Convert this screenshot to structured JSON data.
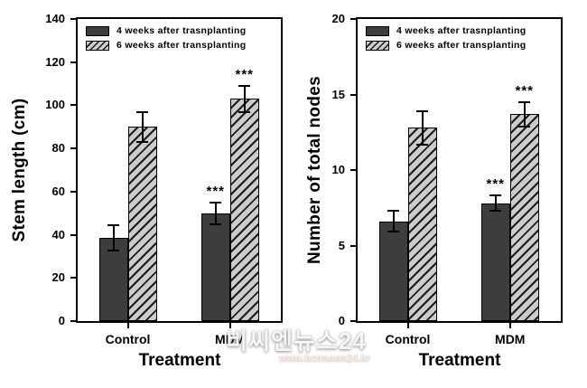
{
  "figure": {
    "background": "#ffffff"
  },
  "watermark": {
    "title": "비씨엔뉴스24",
    "url": "www.bcnnews24.kr"
  },
  "colors": {
    "bar_dark_fill": "#3d3d3d",
    "bar_hatch_bg": "#cccccc",
    "hatch_line": "#1a1a1a",
    "axis_line": "#000000",
    "text": "#000000"
  },
  "significance_symbol": "***",
  "chart_data": [
    {
      "type": "bar",
      "title": "",
      "xlabel": "Treatment",
      "ylabel": "Stem length (cm)",
      "ylim": [
        0,
        140
      ],
      "ytick_step": 20,
      "yticks": [
        0,
        20,
        40,
        60,
        80,
        100,
        120,
        140
      ],
      "categories": [
        "Control",
        "MDM"
      ],
      "legend_position": "upper-left-inside",
      "grid": false,
      "series": [
        {
          "name": "4 weeks after trasnplanting",
          "style": "solid-dark",
          "values": [
            38.5,
            50
          ],
          "errors": [
            6,
            5
          ],
          "significance": [
            "",
            "***"
          ]
        },
        {
          "name": "6 weeks after transplanting",
          "style": "hatched",
          "values": [
            90,
            103
          ],
          "errors": [
            7,
            6
          ],
          "significance": [
            "",
            "***"
          ]
        }
      ]
    },
    {
      "type": "bar",
      "title": "",
      "xlabel": "Treatment",
      "ylabel": "Number of total nodes",
      "ylim": [
        0,
        20
      ],
      "ytick_step": 5,
      "yticks": [
        0,
        5,
        10,
        15,
        20
      ],
      "categories": [
        "Control",
        "MDM"
      ],
      "legend_position": "upper-left-inside",
      "grid": false,
      "series": [
        {
          "name": "4 weeks after trasnplanting",
          "style": "solid-dark",
          "values": [
            6.6,
            7.8
          ],
          "errors": [
            0.7,
            0.5
          ],
          "significance": [
            "",
            "***"
          ]
        },
        {
          "name": "6 weeks after transplanting",
          "style": "hatched",
          "values": [
            12.8,
            13.7
          ],
          "errors": [
            1.1,
            0.8
          ],
          "significance": [
            "",
            "***"
          ]
        }
      ]
    }
  ]
}
